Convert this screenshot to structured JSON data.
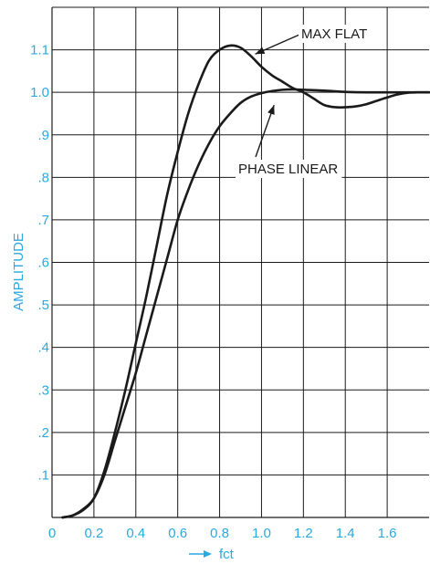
{
  "chart_data": {
    "type": "line",
    "title": "",
    "xlabel": "fct",
    "ylabel": "AMPLITUDE",
    "xlim": [
      0,
      1.8
    ],
    "ylim": [
      0,
      1.2
    ],
    "grid": true,
    "x_ticks": [
      {
        "value": 0,
        "label": "0"
      },
      {
        "value": 0.2,
        "label": "0.2"
      },
      {
        "value": 0.4,
        "label": "0.4"
      },
      {
        "value": 0.6,
        "label": "0.6"
      },
      {
        "value": 0.8,
        "label": "0.8"
      },
      {
        "value": 1.0,
        "label": "1.0"
      },
      {
        "value": 1.2,
        "label": "1.2"
      },
      {
        "value": 1.4,
        "label": "1.4"
      },
      {
        "value": 1.6,
        "label": "1.6"
      }
    ],
    "y_ticks": [
      {
        "value": 0.1,
        "label": ".1"
      },
      {
        "value": 0.2,
        "label": ".2"
      },
      {
        "value": 0.3,
        "label": ".3"
      },
      {
        "value": 0.4,
        "label": ".4"
      },
      {
        "value": 0.5,
        "label": ".5"
      },
      {
        "value": 0.6,
        "label": ".6"
      },
      {
        "value": 0.7,
        "label": ".7"
      },
      {
        "value": 0.8,
        "label": ".8"
      },
      {
        "value": 0.9,
        "label": ".9"
      },
      {
        "value": 1.0,
        "label": "1.0"
      },
      {
        "value": 1.1,
        "label": "1.1"
      }
    ],
    "series": [
      {
        "name": "MAX FLAT",
        "x": [
          0.05,
          0.1,
          0.15,
          0.2,
          0.25,
          0.3,
          0.35,
          0.4,
          0.45,
          0.5,
          0.55,
          0.6,
          0.65,
          0.7,
          0.75,
          0.8,
          0.85,
          0.9,
          0.95,
          1.0,
          1.05,
          1.1,
          1.15,
          1.2,
          1.25,
          1.3,
          1.35,
          1.4,
          1.45,
          1.5,
          1.55,
          1.6,
          1.65,
          1.7,
          1.75,
          1.8
        ],
        "y": [
          0.0,
          0.005,
          0.018,
          0.045,
          0.11,
          0.2,
          0.3,
          0.41,
          0.52,
          0.64,
          0.76,
          0.86,
          0.95,
          1.02,
          1.075,
          1.1,
          1.11,
          1.105,
          1.085,
          1.06,
          1.04,
          1.025,
          1.01,
          1.0,
          0.985,
          0.97,
          0.965,
          0.965,
          0.967,
          0.972,
          0.98,
          0.988,
          0.995,
          0.999,
          1.0,
          1.0
        ]
      },
      {
        "name": "PHASE LINEAR",
        "x": [
          0.05,
          0.1,
          0.15,
          0.2,
          0.25,
          0.3,
          0.35,
          0.4,
          0.45,
          0.5,
          0.55,
          0.6,
          0.65,
          0.7,
          0.75,
          0.8,
          0.85,
          0.9,
          0.95,
          1.0,
          1.05,
          1.1,
          1.15,
          1.2,
          1.3,
          1.4,
          1.5,
          1.6,
          1.7,
          1.8
        ],
        "y": [
          0.0,
          0.005,
          0.02,
          0.045,
          0.1,
          0.18,
          0.26,
          0.34,
          0.43,
          0.52,
          0.61,
          0.7,
          0.77,
          0.83,
          0.88,
          0.92,
          0.95,
          0.975,
          0.99,
          0.998,
          1.003,
          1.006,
          1.007,
          1.006,
          1.004,
          1.001,
          1.0,
          1.0,
          1.0,
          1.0
        ]
      }
    ],
    "annotations": [
      {
        "text": "MAX FLAT",
        "target_x": 0.97,
        "target_y": 1.09
      },
      {
        "text": "PHASE LINEAR",
        "target_x": 1.06,
        "target_y": 0.97
      }
    ],
    "colors": {
      "tick_text": "#2AA9E0",
      "curve": "#1a1a1a",
      "grid": "#1a1a1a",
      "background": "#ffffff"
    }
  }
}
